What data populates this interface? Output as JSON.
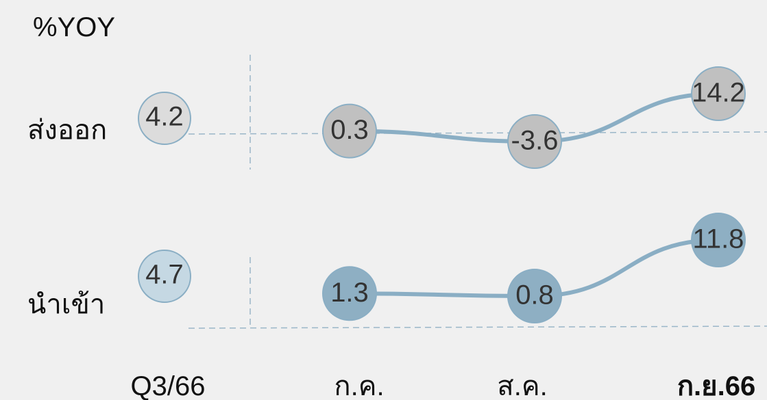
{
  "chart_data": {
    "type": "line",
    "unit_label": "%YOY",
    "x_ticks": [
      "Q3/66",
      "ก.ค.",
      "ส.ค.",
      "ก.ย.66"
    ],
    "x_tick_bold_index": 3,
    "series": [
      {
        "name": "ส่งออก",
        "summary": {
          "label": "Q3/66",
          "value": "4.2"
        },
        "x": [
          "ก.ค.",
          "ส.ค.",
          "ก.ย.66"
        ],
        "values": [
          0.3,
          -3.6,
          14.2
        ],
        "value_labels": [
          "0.3",
          "-3.6",
          "14.2"
        ]
      },
      {
        "name": "นำเข้า",
        "summary": {
          "label": "Q3/66",
          "value": "4.7"
        },
        "x": [
          "ก.ค.",
          "ส.ค.",
          "ก.ย.66"
        ],
        "values": [
          1.3,
          0.8,
          11.8
        ],
        "value_labels": [
          "1.3",
          "0.8",
          "11.8"
        ]
      }
    ],
    "grid": false,
    "legend": "none"
  },
  "colors": {
    "background": "#f0f0f0",
    "line": "#8aaec4",
    "export_bubble_fill": "#c0c0c0",
    "export_summary_fill": "#dcdcdc",
    "import_bubble_fill": "#8eafc3",
    "import_summary_fill": "#c5d8e3",
    "bubble_stroke": "#8aaec4",
    "dashed": "#9ab6c8"
  }
}
